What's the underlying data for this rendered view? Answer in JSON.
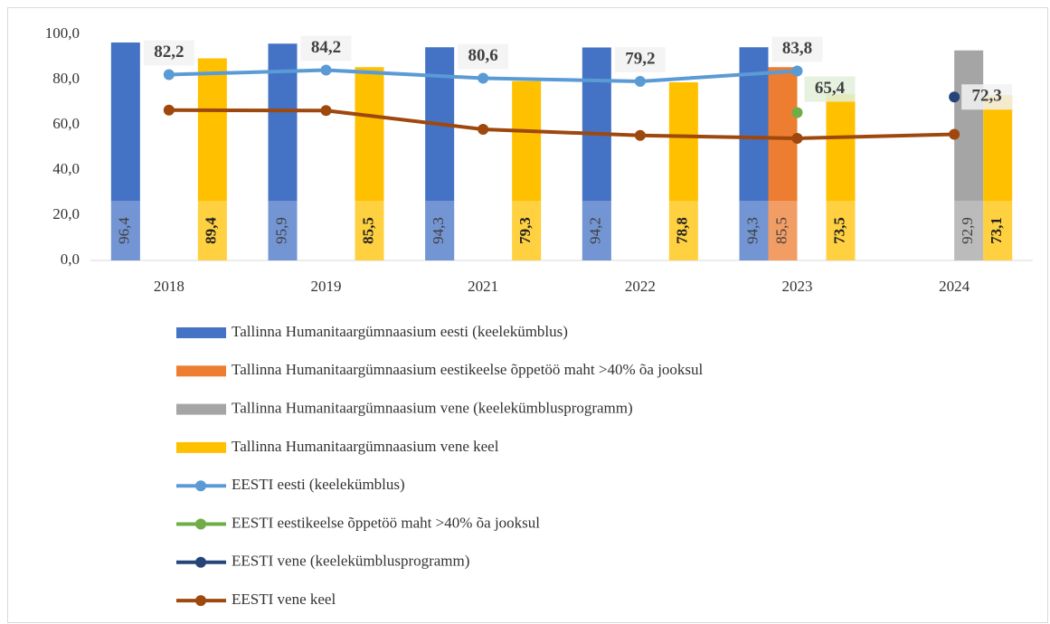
{
  "chart_data": {
    "type": "bar",
    "categories": [
      "2018",
      "2019",
      "2021",
      "2022",
      "2023",
      "2024"
    ],
    "ylim": [
      0,
      100
    ],
    "yticks": [
      {
        "value": 0,
        "label": "0,0"
      },
      {
        "value": 20,
        "label": "20,0"
      },
      {
        "value": 40,
        "label": "40,0"
      },
      {
        "value": 60,
        "label": "60,0"
      },
      {
        "value": 80,
        "label": "80,0"
      },
      {
        "value": 100,
        "label": "100,0"
      }
    ],
    "legend": "bottom",
    "series": [
      {
        "name": "Tallinna Humanitaargümnaasium eesti (keelekümblus)",
        "type": "bar",
        "color": "#4472c4",
        "values": [
          96.4,
          95.9,
          94.3,
          94.2,
          94.3,
          null
        ],
        "value_labels": [
          "96,4",
          "95,9",
          "94,3",
          "94,2",
          "94,3",
          null
        ]
      },
      {
        "name": "Tallinna Humanitaargümnaasium eestikeelse õppetöö maht >40% õa jooksul",
        "type": "bar",
        "color": "#ed7d31",
        "values": [
          null,
          null,
          null,
          null,
          85.5,
          null
        ],
        "value_labels": [
          null,
          null,
          null,
          null,
          "85,5",
          null
        ]
      },
      {
        "name": "Tallinna Humanitaargümnaasium vene (keelekümblusprogramm)",
        "type": "bar",
        "color": "#a5a5a5",
        "values": [
          null,
          null,
          null,
          null,
          null,
          92.9
        ],
        "value_labels": [
          null,
          null,
          null,
          null,
          null,
          "92,9"
        ]
      },
      {
        "name": "Tallinna Humanitaargümnaasium vene keel",
        "type": "bar",
        "color": "#ffc000",
        "values": [
          89.4,
          85.5,
          79.3,
          78.8,
          73.5,
          73.1
        ],
        "value_labels": [
          "89,4",
          "85,5",
          "79,3",
          "78,8",
          "73,5",
          "73,1"
        ]
      },
      {
        "name": "EESTI eesti (keelekümblus)",
        "type": "line",
        "color": "#5b9bd5",
        "values": [
          82.2,
          84.2,
          80.6,
          79.2,
          83.8,
          null
        ],
        "value_labels": [
          "82,2",
          "84,2",
          "80,6",
          "79,2",
          "83,8",
          null
        ]
      },
      {
        "name": "EESTI eestikeelse õppetöö maht >40% õa jooksul",
        "type": "line",
        "color": "#70ad47",
        "values": [
          null,
          null,
          null,
          null,
          65.4,
          null
        ],
        "value_labels": [
          null,
          null,
          null,
          null,
          "65,4",
          null
        ]
      },
      {
        "name": "EESTI vene (keelekümblusprogramm)",
        "type": "line",
        "color": "#264478",
        "values": [
          null,
          null,
          null,
          null,
          null,
          72.3
        ],
        "value_labels": [
          null,
          null,
          null,
          null,
          null,
          "72,3"
        ]
      },
      {
        "name": "EESTI vene keel",
        "type": "line",
        "color": "#9e480e",
        "values": [
          66.5,
          66.3,
          58.0,
          55.3,
          54.0,
          55.8
        ]
      }
    ]
  }
}
